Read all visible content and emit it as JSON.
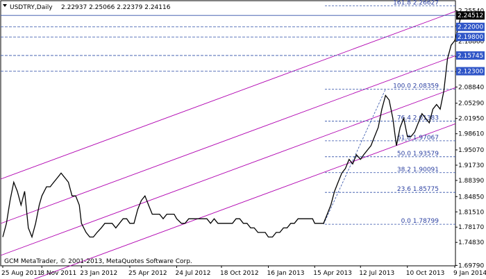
{
  "header": {
    "symbol": "USDTRY,Daily",
    "ohlc": "2.22937 2.25066 2.22379 2.24116"
  },
  "footer": {
    "copyright": "GCM MetaTrader, © 2001-2013, MetaQuotes Software Corp."
  },
  "colors": {
    "background": "#ffffff",
    "price": "#000000",
    "channel": "#b000b0",
    "fib_lines": "#2f4ea8",
    "label_bg": "#2f55c7"
  },
  "chart_data": {
    "type": "line",
    "title": "USDTRY,Daily",
    "ylim": [
      1.697,
      2.2667
    ],
    "x_ticks": [
      "25 Aug 2011",
      "8 Nov 2011",
      "23 Jan 2012",
      "25 Apr 2012",
      "24 Jul 2012",
      "18 Oct 2012",
      "16 Jan 2013",
      "15 Apr 2013",
      "12 Jul 2013",
      "10 Oct 2013",
      "9 Jan 2014"
    ],
    "y_ticks": [
      "2.25540",
      "2.22200",
      "2.18860",
      "2.15520",
      "2.12180",
      "2.08840",
      "2.05290",
      "2.01950",
      "1.98610",
      "1.95070",
      "1.91730",
      "1.88390",
      "1.84850",
      "1.81510",
      "1.78170",
      "1.74830",
      "1.69790"
    ],
    "price_labels": [
      {
        "text": "2.24512",
        "highlight": true
      },
      {
        "text": "2.22000"
      },
      {
        "text": "2.19800"
      },
      {
        "text": "2.15745"
      },
      {
        "text": "2.12300"
      }
    ],
    "fibonacci": [
      {
        "label": "161.8  2.26627",
        "value": 2.26627
      },
      {
        "label": "100.0  2.08359",
        "value": 2.08359
      },
      {
        "label": "76.4  2.01383",
        "value": 2.01383
      },
      {
        "label": "61.8  1.97067",
        "value": 1.97067
      },
      {
        "label": "50.0  1.93579",
        "value": 1.93579
      },
      {
        "label": "38.2  1.90091",
        "value": 1.90091
      },
      {
        "label": "23.6  1.85775",
        "value": 1.85775
      },
      {
        "label": "0.0  1.78799",
        "value": 1.78799
      }
    ],
    "series": [
      {
        "values": [
          [
            "25 Aug 2011",
            1.76
          ],
          [
            "1 Sep 2011",
            1.79
          ],
          [
            "8 Sep 2011",
            1.84
          ],
          [
            "15 Sep 2011",
            1.88
          ],
          [
            "22 Sep 2011",
            1.86
          ],
          [
            "29 Sep 2011",
            1.83
          ],
          [
            "6 Oct 2011",
            1.86
          ],
          [
            "13 Oct 2011",
            1.78
          ],
          [
            "20 Oct 2011",
            1.76
          ],
          [
            "27 Oct 2011",
            1.79
          ],
          [
            "3 Nov 2011",
            1.83
          ],
          [
            "8 Nov 2011",
            1.85
          ],
          [
            "17 Nov 2011",
            1.87
          ],
          [
            "24 Nov 2011",
            1.87
          ],
          [
            "1 Dec 2011",
            1.88
          ],
          [
            "8 Dec 2011",
            1.89
          ],
          [
            "15 Dec 2011",
            1.9
          ],
          [
            "22 Dec 2011",
            1.89
          ],
          [
            "29 Dec 2011",
            1.88
          ],
          [
            "5 Jan 2012",
            1.85
          ],
          [
            "12 Jan 2012",
            1.85
          ],
          [
            "19 Jan 2012",
            1.83
          ],
          [
            "23 Jan 2012",
            1.79
          ],
          [
            "1 Feb 2012",
            1.77
          ],
          [
            "8 Feb 2012",
            1.76
          ],
          [
            "15 Feb 2012",
            1.76
          ],
          [
            "22 Feb 2012",
            1.77
          ],
          [
            "1 Mar 2012",
            1.78
          ],
          [
            "8 Mar 2012",
            1.79
          ],
          [
            "15 Mar 2012",
            1.79
          ],
          [
            "22 Mar 2012",
            1.79
          ],
          [
            "29 Mar 2012",
            1.78
          ],
          [
            "5 Apr 2012",
            1.79
          ],
          [
            "12 Apr 2012",
            1.8
          ],
          [
            "19 Apr 2012",
            1.8
          ],
          [
            "25 Apr 2012",
            1.79
          ],
          [
            "3 May 2012",
            1.79
          ],
          [
            "10 May 2012",
            1.82
          ],
          [
            "17 May 2012",
            1.84
          ],
          [
            "24 May 2012",
            1.85
          ],
          [
            "31 May 2012",
            1.83
          ],
          [
            "7 Jun 2012",
            1.81
          ],
          [
            "14 Jun 2012",
            1.81
          ],
          [
            "21 Jun 2012",
            1.81
          ],
          [
            "28 Jun 2012",
            1.8
          ],
          [
            "5 Jul 2012",
            1.81
          ],
          [
            "12 Jul 2012",
            1.81
          ],
          [
            "19 Jul 2012",
            1.81
          ],
          [
            "24 Jul 2012",
            1.8
          ],
          [
            "2 Aug 2012",
            1.79
          ],
          [
            "9 Aug 2012",
            1.79
          ],
          [
            "16 Aug 2012",
            1.8
          ],
          [
            "23 Aug 2012",
            1.8
          ],
          [
            "30 Aug 2012",
            1.8
          ],
          [
            "6 Sep 2012",
            1.8
          ],
          [
            "13 Sep 2012",
            1.8
          ],
          [
            "20 Sep 2012",
            1.8
          ],
          [
            "27 Sep 2012",
            1.79
          ],
          [
            "4 Oct 2012",
            1.8
          ],
          [
            "11 Oct 2012",
            1.79
          ],
          [
            "18 Oct 2012",
            1.79
          ],
          [
            "25 Oct 2012",
            1.79
          ],
          [
            "1 Nov 2012",
            1.79
          ],
          [
            "8 Nov 2012",
            1.79
          ],
          [
            "15 Nov 2012",
            1.8
          ],
          [
            "22 Nov 2012",
            1.8
          ],
          [
            "29 Nov 2012",
            1.79
          ],
          [
            "6 Dec 2012",
            1.79
          ],
          [
            "13 Dec 2012",
            1.78
          ],
          [
            "20 Dec 2012",
            1.78
          ],
          [
            "27 Dec 2012",
            1.77
          ],
          [
            "3 Jan 2013",
            1.77
          ],
          [
            "10 Jan 2013",
            1.77
          ],
          [
            "16 Jan 2013",
            1.76
          ],
          [
            "24 Jan 2013",
            1.76
          ],
          [
            "31 Jan 2013",
            1.77
          ],
          [
            "7 Feb 2013",
            1.77
          ],
          [
            "14 Feb 2013",
            1.78
          ],
          [
            "21 Feb 2013",
            1.78
          ],
          [
            "28 Feb 2013",
            1.79
          ],
          [
            "7 Mar 2013",
            1.79
          ],
          [
            "14 Mar 2013",
            1.8
          ],
          [
            "21 Mar 2013",
            1.8
          ],
          [
            "28 Mar 2013",
            1.8
          ],
          [
            "4 Apr 2013",
            1.8
          ],
          [
            "11 Apr 2013",
            1.8
          ],
          [
            "15 Apr 2013",
            1.79
          ],
          [
            "25 Apr 2013",
            1.79
          ],
          [
            "2 May 2013",
            1.79
          ],
          [
            "9 May 2013",
            1.81
          ],
          [
            "16 May 2013",
            1.83
          ],
          [
            "23 May 2013",
            1.86
          ],
          [
            "30 May 2013",
            1.88
          ],
          [
            "6 Jun 2013",
            1.9
          ],
          [
            "13 Jun 2013",
            1.91
          ],
          [
            "20 Jun 2013",
            1.93
          ],
          [
            "27 Jun 2013",
            1.92
          ],
          [
            "4 Jul 2013",
            1.94
          ],
          [
            "12 Jul 2013",
            1.93
          ],
          [
            "18 Jul 2013",
            1.94
          ],
          [
            "25 Jul 2013",
            1.95
          ],
          [
            "1 Aug 2013",
            1.96
          ],
          [
            "8 Aug 2013",
            1.98
          ],
          [
            "15 Aug 2013",
            2.0
          ],
          [
            "22 Aug 2013",
            2.04
          ],
          [
            "29 Aug 2013",
            2.07
          ],
          [
            "5 Sep 2013",
            2.06
          ],
          [
            "12 Sep 2013",
            2.02
          ],
          [
            "19 Sep 2013",
            1.96
          ],
          [
            "26 Sep 2013",
            2.0
          ],
          [
            "3 Oct 2013",
            2.02
          ],
          [
            "10 Oct 2013",
            1.98
          ],
          [
            "17 Oct 2013",
            1.98
          ],
          [
            "24 Oct 2013",
            1.99
          ],
          [
            "31 Oct 2013",
            2.01
          ],
          [
            "7 Nov 2013",
            2.03
          ],
          [
            "14 Nov 2013",
            2.02
          ],
          [
            "21 Nov 2013",
            2.01
          ],
          [
            "28 Nov 2013",
            2.04
          ],
          [
            "5 Dec 2013",
            2.05
          ],
          [
            "12 Dec 2013",
            2.04
          ],
          [
            "19 Dec 2013",
            2.08
          ],
          [
            "26 Dec 2013",
            2.15
          ],
          [
            "2 Jan 2014",
            2.18
          ],
          [
            "9 Jan 2014",
            2.19
          ],
          [
            "16 Jan 2014",
            2.22
          ],
          [
            "20 Jan 2014",
            2.24
          ]
        ]
      }
    ]
  }
}
